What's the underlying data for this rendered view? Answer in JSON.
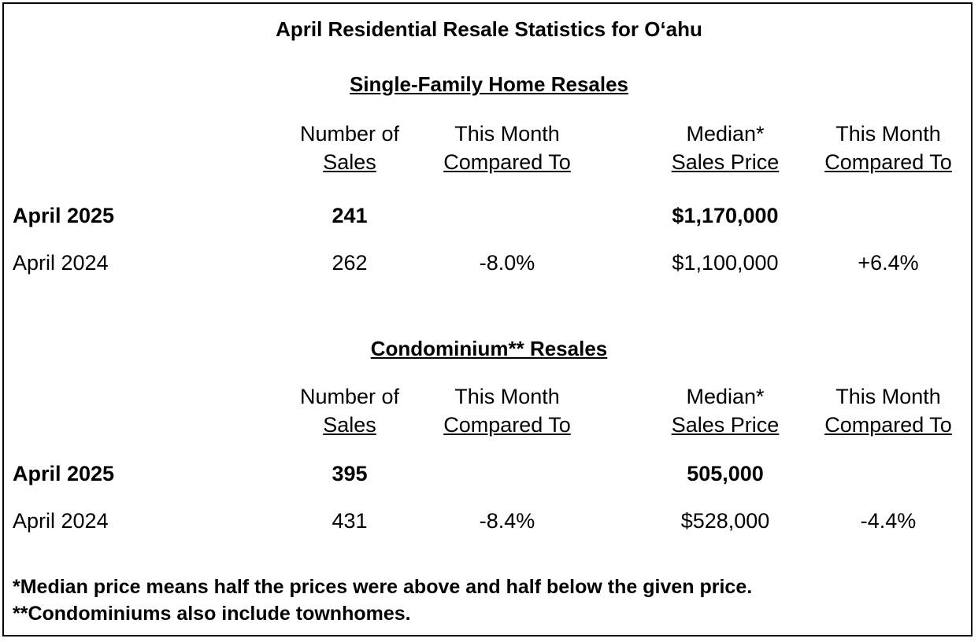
{
  "title": "April Residential Resale Statistics for O‘ahu",
  "headers": {
    "num_sales_1": "Number of",
    "num_sales_2": "Sales",
    "compare_1": "This Month",
    "compare_2": "Compared To",
    "median_1": "Median*",
    "median_2": "Sales Price",
    "compare2_1": "This Month",
    "compare2_2": "Compared To"
  },
  "single_family": {
    "section_title": "Single-Family Home Resales",
    "rows": [
      {
        "label": "April 2025",
        "sales": "241",
        "sales_change": "",
        "median": "$1,170,000",
        "median_change": ""
      },
      {
        "label": "April 2024",
        "sales": "262",
        "sales_change": "-8.0%",
        "median": "$1,100,000",
        "median_change": "+6.4%"
      }
    ]
  },
  "condo": {
    "section_title": "Condominium** Resales",
    "rows": [
      {
        "label": "April 2025",
        "sales": "395",
        "sales_change": "",
        "median": "505,000",
        "median_change": ""
      },
      {
        "label": "April 2024",
        "sales": "431",
        "sales_change": "-8.4%",
        "median": "$528,000",
        "median_change": "-4.4%"
      }
    ]
  },
  "notes": [
    "*Median price means half the prices were above and half below the given price.",
    "**Condominiums also include townhomes."
  ]
}
